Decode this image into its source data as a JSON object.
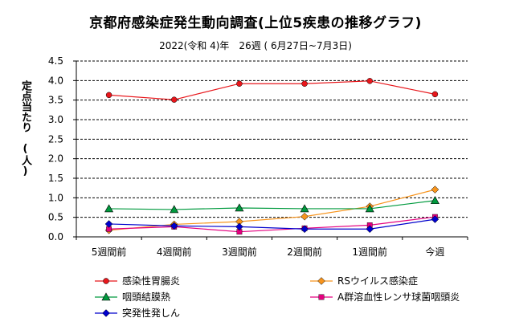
{
  "chart_data": {
    "type": "line",
    "title": "京都府感染症発生動向調査(上位5疾患の推移グラフ)",
    "subtitle": "2022(令和 4)年　26週 ( 6月27日~7月3日)",
    "ylabel": "定点当たり　(人)",
    "categories": [
      "5週間前",
      "4週間前",
      "3週間前",
      "2週間前",
      "1週間前",
      "今週"
    ],
    "ylim": [
      0,
      4.5
    ],
    "yticks": [
      "0.0",
      "0.5",
      "1.0",
      "1.5",
      "2.0",
      "2.5",
      "3.0",
      "3.5",
      "4.0",
      "4.5"
    ],
    "grid": true,
    "legend_position": "bottom",
    "series": [
      {
        "name": "感染性胃腸炎",
        "color": "#e8161b",
        "marker": "circle",
        "values": [
          3.63,
          3.51,
          3.92,
          3.92,
          3.99,
          3.65
        ]
      },
      {
        "name": "RSウイルス感染症",
        "color": "#f7941d",
        "marker": "diamond",
        "values": [
          0.17,
          0.32,
          0.39,
          0.52,
          0.78,
          1.21
        ]
      },
      {
        "name": "咽頭結膜熱",
        "color": "#009a3e",
        "marker": "triangle",
        "values": [
          0.72,
          0.7,
          0.74,
          0.72,
          0.72,
          0.93
        ]
      },
      {
        "name": "A群溶血性レンサ球菌咽頭炎",
        "color": "#e4007f",
        "marker": "square",
        "values": [
          0.2,
          0.26,
          0.13,
          0.22,
          0.3,
          0.51
        ]
      },
      {
        "name": "突発性発しん",
        "color": "#0000cc",
        "marker": "diamond",
        "values": [
          0.33,
          0.28,
          0.26,
          0.2,
          0.2,
          0.45
        ]
      }
    ]
  }
}
